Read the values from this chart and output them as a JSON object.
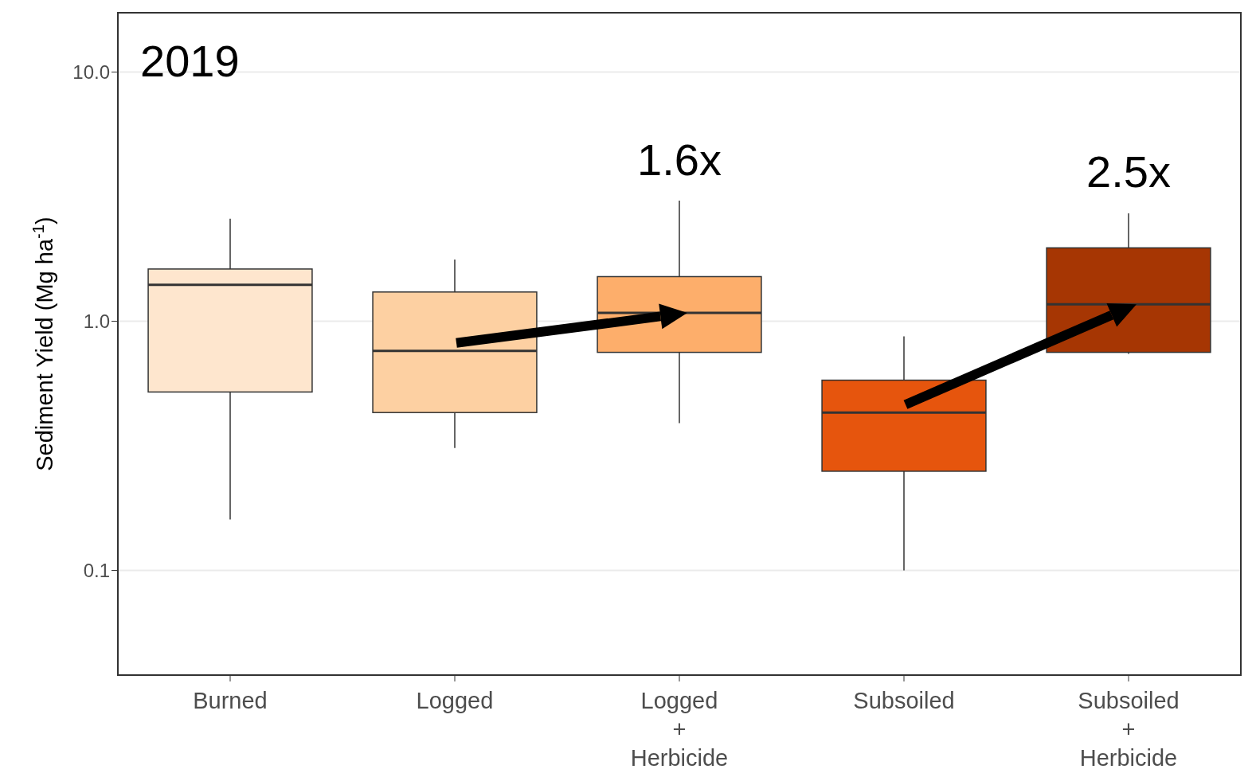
{
  "chart_data": {
    "type": "box",
    "ylabel": "Sediment Yield (Mg  ha$^{-1}$)",
    "categories": [
      "Burned",
      "Logged",
      "Logged\n+\nHerbicide",
      "Subsoiled",
      "Subsoiled\n+\nHerbicide"
    ],
    "colors": [
      "#fee6ce",
      "#fdd0a2",
      "#fdae6b",
      "#e6550d",
      "#a63603"
    ],
    "boxes": [
      {
        "low": 0.16,
        "q1": 0.52,
        "median": 1.4,
        "q3": 1.62,
        "high": 2.58
      },
      {
        "low": 0.31,
        "q1": 0.43,
        "median": 0.76,
        "q3": 1.31,
        "high": 1.77
      },
      {
        "low": 0.39,
        "q1": 0.75,
        "median": 1.08,
        "q3": 1.51,
        "high": 3.05
      },
      {
        "low": 0.1,
        "q1": 0.25,
        "median": 0.43,
        "q3": 0.58,
        "high": 0.87
      },
      {
        "low": 0.74,
        "q1": 0.75,
        "median": 1.17,
        "q3": 1.97,
        "high": 2.71
      }
    ],
    "log": "y",
    "ylim": [
      0.038,
      17.3
    ],
    "yticks": [
      {
        "value": 0.1,
        "label": "0.1"
      },
      {
        "value": 1,
        "label": "1.0"
      },
      {
        "value": 10,
        "label": "10.0"
      }
    ],
    "grid": "y",
    "annotations": [
      "2019",
      "1.6x",
      "2.5x"
    ]
  }
}
